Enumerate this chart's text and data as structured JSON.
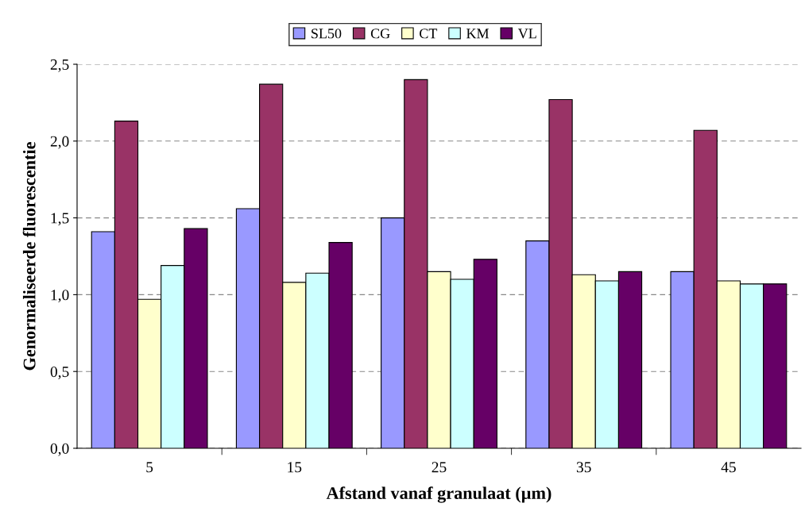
{
  "chart_data": {
    "type": "bar",
    "xlabel": "Afstand vanaf granulaat (µm)",
    "ylabel": "Genormaliseerde fluorescentie",
    "categories": [
      "5",
      "15",
      "25",
      "35",
      "45"
    ],
    "series": [
      {
        "name": "SL50",
        "color": "#9999ff",
        "values": [
          1.41,
          1.56,
          1.5,
          1.35,
          1.15
        ]
      },
      {
        "name": "CG",
        "color": "#993366",
        "values": [
          2.13,
          2.37,
          2.4,
          2.27,
          2.07
        ]
      },
      {
        "name": "CT",
        "color": "#ffffcc",
        "values": [
          0.97,
          1.08,
          1.15,
          1.13,
          1.09
        ]
      },
      {
        "name": "KM",
        "color": "#ccffff",
        "values": [
          1.19,
          1.14,
          1.1,
          1.09,
          1.07
        ]
      },
      {
        "name": "VL",
        "color": "#660066",
        "values": [
          1.43,
          1.34,
          1.23,
          1.15,
          1.07
        ]
      }
    ],
    "ylim": [
      0,
      2.5
    ],
    "yticks": [
      {
        "value": 0,
        "label": "0,0"
      },
      {
        "value": 0.5,
        "label": "0,5"
      },
      {
        "value": 1,
        "label": "1,0"
      },
      {
        "value": 1.5,
        "label": "1,5"
      },
      {
        "value": 2,
        "label": "2,0"
      },
      {
        "value": 2.5,
        "label": "2,5"
      }
    ],
    "grid": "y",
    "legend": "top"
  }
}
